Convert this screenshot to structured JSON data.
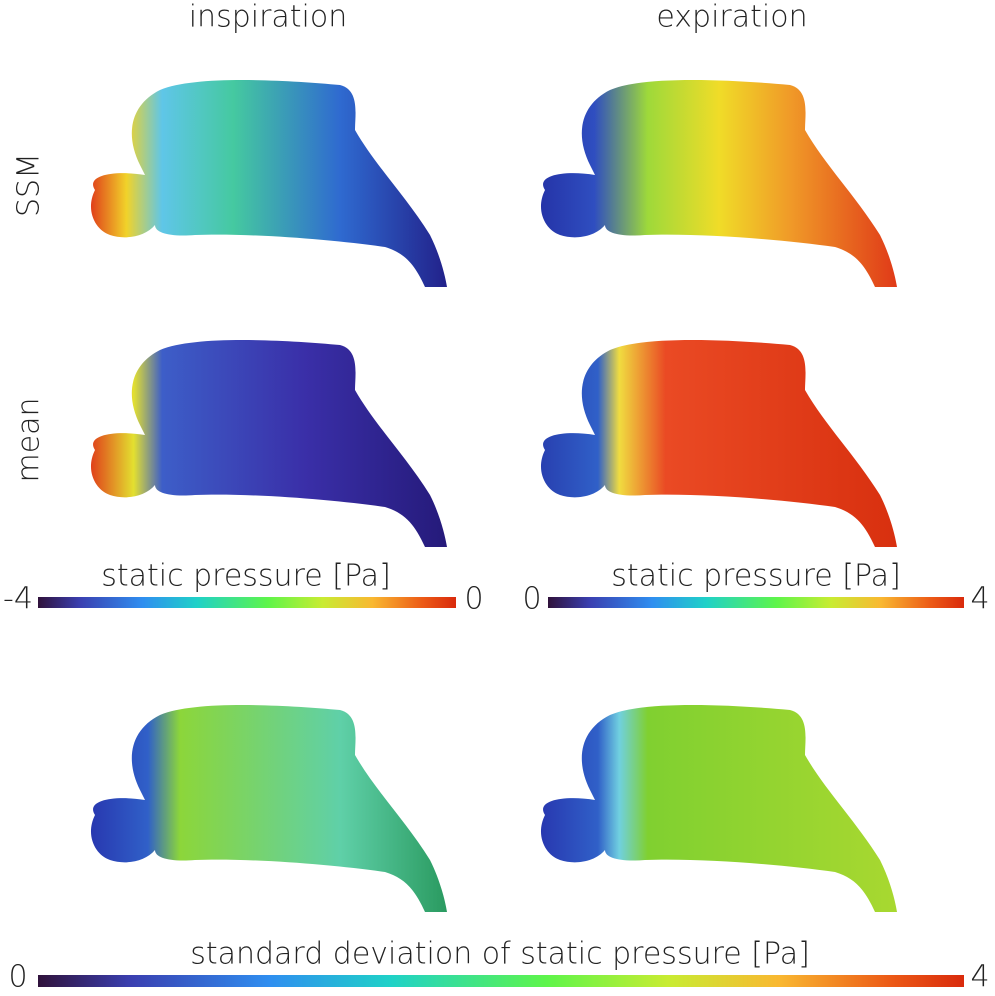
{
  "columns": [
    "inspiration",
    "expiration"
  ],
  "rows": [
    "SSM",
    "mean"
  ],
  "colorbars": [
    {
      "label": "static pressure [Pa]",
      "min": -4,
      "max": 0
    },
    {
      "label": "static pressure [Pa]",
      "min": 0,
      "max": 4
    },
    {
      "label": "standard deviation of static pressure [Pa]",
      "min": 0,
      "max": 4
    }
  ]
}
